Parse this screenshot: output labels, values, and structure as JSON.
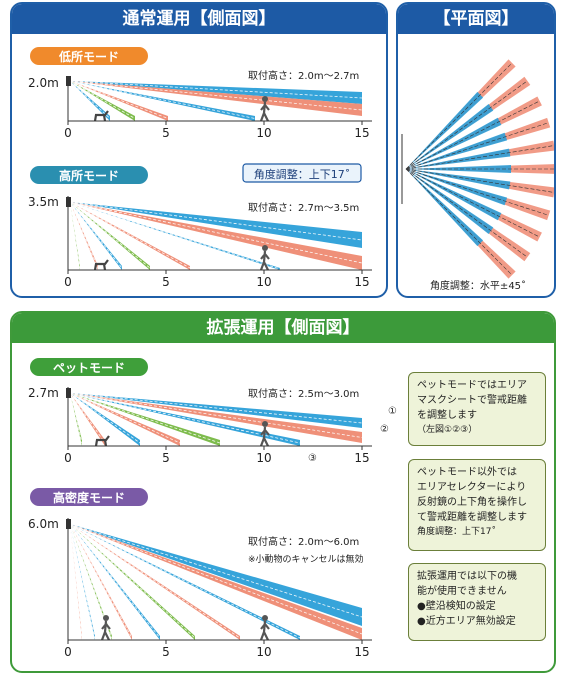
{
  "sections": {
    "normal": {
      "title": "通常運用【側面図】"
    },
    "plan": {
      "title": "【平面図】",
      "caption": "角度調整：水平±45˚"
    },
    "extended": {
      "title": "拡張運用【側面図】"
    }
  },
  "modes": {
    "low": {
      "label": "低所モード",
      "height_label": "2.0m",
      "mount": "取付高さ：2.0m～2.7m"
    },
    "high": {
      "label": "高所モード",
      "height_label": "3.5m",
      "mount": "取付高さ：2.7m～3.5m",
      "badge": "角度調整：上下17˚"
    },
    "pet": {
      "label": "ペットモード",
      "height_label": "2.7m",
      "mount": "取付高さ：2.5m～3.0m",
      "markers": [
        "①",
        "②",
        "③"
      ]
    },
    "dense": {
      "label": "高密度モード",
      "height_label": "6.0m",
      "mount": "取付高さ：2.0m～6.0m",
      "note": "※小動物のキャンセルは無効"
    }
  },
  "axis_ticks": [
    "0",
    "5",
    "10",
    "15"
  ],
  "notes": {
    "pet": {
      "lines": [
        "ペットモードではエリア",
        "マスクシートで警戒距離",
        "を調整します"
      ],
      "sub": "（左図①②③）"
    },
    "selector": {
      "lines": [
        "ペットモード以外では",
        "エリアセレクターにより",
        "反射鏡の上下角を操作し",
        "て警戒距離を調整します"
      ],
      "sub": "角度調整：上下17˚"
    },
    "limits": {
      "lines": [
        "拡張運用では以下の機",
        "能が使用できません"
      ],
      "bullets": [
        "●壁沿検知の設定",
        "●近方エリア無効設定"
      ]
    }
  },
  "colors": {
    "blue": "#2b9fd8",
    "salmon": "#ee8a72",
    "green": "#77b843",
    "mode_orange": "#f08a2c",
    "mode_teal": "#2a8fb0",
    "mode_green": "#3f9f3a",
    "mode_purple": "#7a5aa6"
  }
}
